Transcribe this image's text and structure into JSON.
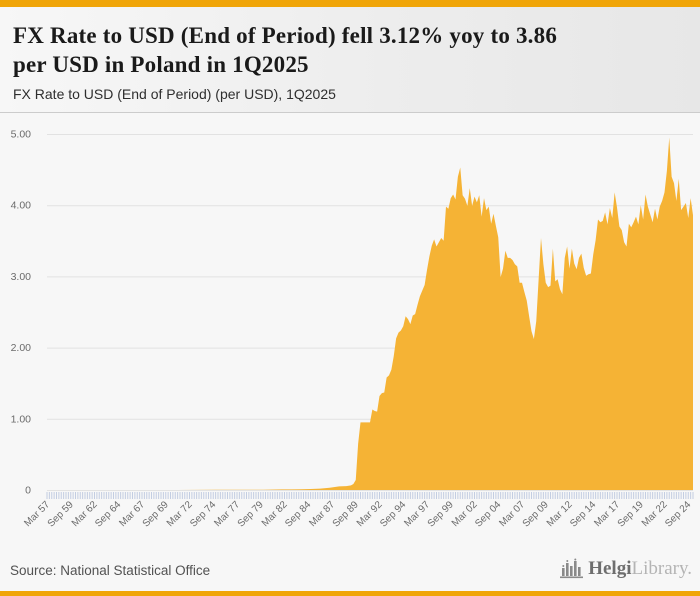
{
  "colors": {
    "accent_bar": "#F0A508",
    "area_fill": "#F5B335",
    "grid_line": "#e2e2e2",
    "quarter_tick": "#c3cde2",
    "axis_text": "#6b6b6b"
  },
  "header": {
    "title_line1": "FX Rate to USD (End of Period) fell 3.12% yoy to 3.86",
    "title_line2": "per USD in Poland in 1Q2025",
    "subtitle": "FX Rate to USD (End of Period) (per USD), 1Q2025"
  },
  "footer": {
    "source": "Source: National Statistical Office",
    "brand_bold": "Helgi",
    "brand_light": "Library."
  },
  "chart_data": {
    "type": "area",
    "title": "FX Rate to USD (End of Period) (per USD), 1Q2025",
    "series_name": "FX Rate to USD (End of Period), Poland",
    "unit": "per USD",
    "country": "Poland",
    "latest_period": "1Q2025",
    "latest_value": 3.86,
    "yoy_change_pct": -3.12,
    "ylim": [
      0,
      5
    ],
    "y_tick_labels": [
      "5.00",
      "4.00",
      "3.00",
      "2.00",
      "1.00",
      "0"
    ],
    "y_tick_values": [
      5,
      4,
      3,
      2,
      1,
      0
    ],
    "x_tick_labels": [
      "Mar 57",
      "Sep 59",
      "Mar 62",
      "Sep 64",
      "Mar 67",
      "Sep 69",
      "Mar 72",
      "Sep 74",
      "Mar 77",
      "Sep 79",
      "Mar 82",
      "Sep 84",
      "Mar 87",
      "Sep 89",
      "Mar 92",
      "Sep 94",
      "Mar 97",
      "Sep 99",
      "Mar 02",
      "Sep 04",
      "Mar 07",
      "Sep 09",
      "Mar 12",
      "Sep 14",
      "Mar 17",
      "Sep 19",
      "Mar 22",
      "Sep 24"
    ],
    "x_range_decimal_years": [
      1957.25,
      2025.25
    ],
    "x_tick_step_years": 2.5,
    "quarter_tick_count": 273,
    "grid": true,
    "legend": false,
    "points": [
      [
        1957.25,
        0.0004
      ],
      [
        1965,
        0.0004
      ],
      [
        1971,
        0.0004
      ],
      [
        1975,
        0.0033
      ],
      [
        1980,
        0.0031
      ],
      [
        1982,
        0.0085
      ],
      [
        1983,
        0.0092
      ],
      [
        1984,
        0.0113
      ],
      [
        1985,
        0.0147
      ],
      [
        1986,
        0.0198
      ],
      [
        1987,
        0.0316
      ],
      [
        1988,
        0.0503
      ],
      [
        1988.75,
        0.055
      ],
      [
        1989.25,
        0.065
      ],
      [
        1989.5,
        0.085
      ],
      [
        1989.75,
        0.14
      ],
      [
        1990,
        0.65
      ],
      [
        1990.25,
        0.95
      ],
      [
        1990.5,
        0.95
      ],
      [
        1990.75,
        0.95
      ],
      [
        1991,
        0.95
      ],
      [
        1991.25,
        0.95
      ],
      [
        1991.5,
        1.13
      ],
      [
        1991.75,
        1.11
      ],
      [
        1992,
        1.1
      ],
      [
        1992.25,
        1.32
      ],
      [
        1992.5,
        1.36
      ],
      [
        1992.75,
        1.37
      ],
      [
        1993,
        1.58
      ],
      [
        1993.25,
        1.61
      ],
      [
        1993.5,
        1.69
      ],
      [
        1993.75,
        1.88
      ],
      [
        1994,
        2.13
      ],
      [
        1994.25,
        2.21
      ],
      [
        1994.5,
        2.24
      ],
      [
        1994.75,
        2.3
      ],
      [
        1995,
        2.44
      ],
      [
        1995.25,
        2.4
      ],
      [
        1995.5,
        2.33
      ],
      [
        1995.75,
        2.45
      ],
      [
        1996,
        2.47
      ],
      [
        1996.25,
        2.6
      ],
      [
        1996.5,
        2.72
      ],
      [
        1996.75,
        2.8
      ],
      [
        1997,
        2.88
      ],
      [
        1997.25,
        3.09
      ],
      [
        1997.5,
        3.28
      ],
      [
        1997.75,
        3.43
      ],
      [
        1998,
        3.52
      ],
      [
        1998.25,
        3.42
      ],
      [
        1998.5,
        3.48
      ],
      [
        1998.75,
        3.54
      ],
      [
        1999,
        3.5
      ],
      [
        1999.25,
        3.98
      ],
      [
        1999.5,
        3.95
      ],
      [
        1999.75,
        4.1
      ],
      [
        2000,
        4.15
      ],
      [
        2000.25,
        4.08
      ],
      [
        2000.5,
        4.4
      ],
      [
        2000.75,
        4.53
      ],
      [
        2001,
        4.14
      ],
      [
        2001.25,
        4.09
      ],
      [
        2001.5,
        3.99
      ],
      [
        2001.75,
        4.24
      ],
      [
        2002,
        3.99
      ],
      [
        2002.25,
        4.12
      ],
      [
        2002.5,
        4.04
      ],
      [
        2002.75,
        4.14
      ],
      [
        2003,
        3.84
      ],
      [
        2003.25,
        4.1
      ],
      [
        2003.5,
        3.93
      ],
      [
        2003.75,
        3.98
      ],
      [
        2004,
        3.74
      ],
      [
        2004.25,
        3.88
      ],
      [
        2004.5,
        3.71
      ],
      [
        2004.75,
        3.55
      ],
      [
        2005,
        2.99
      ],
      [
        2005.25,
        3.11
      ],
      [
        2005.5,
        3.36
      ],
      [
        2005.75,
        3.26
      ],
      [
        2006,
        3.26
      ],
      [
        2006.25,
        3.23
      ],
      [
        2006.5,
        3.17
      ],
      [
        2006.75,
        3.14
      ],
      [
        2007,
        2.91
      ],
      [
        2007.25,
        2.91
      ],
      [
        2007.5,
        2.78
      ],
      [
        2007.75,
        2.66
      ],
      [
        2008,
        2.44
      ],
      [
        2008.25,
        2.23
      ],
      [
        2008.5,
        2.12
      ],
      [
        2008.75,
        2.37
      ],
      [
        2009,
        2.96
      ],
      [
        2009.25,
        3.54
      ],
      [
        2009.5,
        3.17
      ],
      [
        2009.75,
        2.91
      ],
      [
        2010,
        2.85
      ],
      [
        2010.25,
        2.87
      ],
      [
        2010.5,
        3.39
      ],
      [
        2010.75,
        2.93
      ],
      [
        2011,
        2.96
      ],
      [
        2011.25,
        2.82
      ],
      [
        2011.5,
        2.75
      ],
      [
        2011.75,
        3.26
      ],
      [
        2012,
        3.42
      ],
      [
        2012.25,
        3.11
      ],
      [
        2012.5,
        3.39
      ],
      [
        2012.75,
        3.18
      ],
      [
        2013,
        3.1
      ],
      [
        2013.25,
        3.26
      ],
      [
        2013.5,
        3.32
      ],
      [
        2013.75,
        3.12
      ],
      [
        2014,
        3.01
      ],
      [
        2014.25,
        3.03
      ],
      [
        2014.5,
        3.04
      ],
      [
        2014.75,
        3.31
      ],
      [
        2015,
        3.51
      ],
      [
        2015.25,
        3.8
      ],
      [
        2015.5,
        3.76
      ],
      [
        2015.75,
        3.78
      ],
      [
        2016,
        3.9
      ],
      [
        2016.25,
        3.73
      ],
      [
        2016.5,
        3.96
      ],
      [
        2016.75,
        3.82
      ],
      [
        2017,
        4.18
      ],
      [
        2017.25,
        3.97
      ],
      [
        2017.5,
        3.7
      ],
      [
        2017.75,
        3.65
      ],
      [
        2018,
        3.48
      ],
      [
        2018.25,
        3.42
      ],
      [
        2018.5,
        3.74
      ],
      [
        2018.75,
        3.69
      ],
      [
        2019,
        3.76
      ],
      [
        2019.25,
        3.84
      ],
      [
        2019.5,
        3.73
      ],
      [
        2019.75,
        4.0
      ],
      [
        2020,
        3.8
      ],
      [
        2020.25,
        4.15
      ],
      [
        2020.5,
        3.98
      ],
      [
        2020.75,
        3.87
      ],
      [
        2021,
        3.76
      ],
      [
        2021.25,
        3.95
      ],
      [
        2021.5,
        3.8
      ],
      [
        2021.75,
        3.98
      ],
      [
        2022,
        4.06
      ],
      [
        2022.25,
        4.18
      ],
      [
        2022.5,
        4.48
      ],
      [
        2022.75,
        4.95
      ],
      [
        2023,
        4.4
      ],
      [
        2023.25,
        4.31
      ],
      [
        2023.5,
        4.06
      ],
      [
        2023.75,
        4.37
      ],
      [
        2024,
        3.93
      ],
      [
        2024.25,
        3.98
      ],
      [
        2024.5,
        4.03
      ],
      [
        2024.75,
        3.82
      ],
      [
        2025,
        4.1
      ],
      [
        2025.25,
        3.86
      ]
    ]
  }
}
